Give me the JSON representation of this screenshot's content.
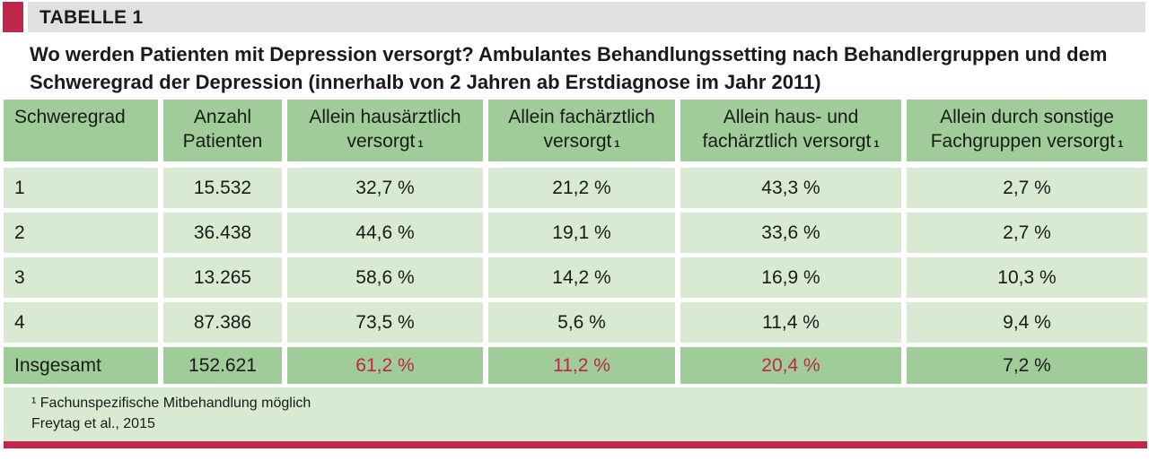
{
  "header": {
    "label": "TABELLE 1"
  },
  "title": "Wo werden Patienten mit Depression versorgt? Ambulantes Behandlungssetting nach Behandlergruppen und dem Schweregrad der Depression (innerhalb von 2 Jahren ab Erstdiagnose im Jahr 2011)",
  "table": {
    "headers": [
      {
        "text": "Schweregrad",
        "note": ""
      },
      {
        "text": "Anzahl Patienten",
        "note": ""
      },
      {
        "text": "Allein hausärztlich versorgt",
        "note": "1"
      },
      {
        "text": "Allein fachärztlich versorgt",
        "note": "1"
      },
      {
        "text": "Allein haus- und fachärztlich versorgt",
        "note": "1"
      },
      {
        "text": "Allein durch sonstige Fachgruppen versorgt",
        "note": "1"
      }
    ],
    "rows": [
      [
        "1",
        "15.532",
        "32,7 %",
        "21,2 %",
        "43,3 %",
        "2,7 %"
      ],
      [
        "2",
        "36.438",
        "44,6 %",
        "19,1 %",
        "33,6 %",
        "2,7 %"
      ],
      [
        "3",
        "13.265",
        "58,6 %",
        "14,2 %",
        "16,9 %",
        "10,3 %"
      ],
      [
        "4",
        "87.386",
        "73,5 %",
        "5,6 %",
        "11,4 %",
        "9,4 %"
      ]
    ],
    "total": [
      "Insgesamt",
      "152.621",
      "61,2 %",
      "11,2 %",
      "20,4 %",
      "7,2 %"
    ],
    "total_highlight": [
      false,
      false,
      true,
      true,
      true,
      false
    ],
    "highlight_color": "#c0254a"
  },
  "footnotes": {
    "note": "¹ Fachunspezifische Mitbehandlung möglich",
    "source": "Freytag et al., 2015"
  },
  "colors": {
    "accent": "#c0254a",
    "header_fill": "#9fcc98",
    "body_fill": "#d9ead3",
    "band_grey": "#e0e0e0"
  }
}
